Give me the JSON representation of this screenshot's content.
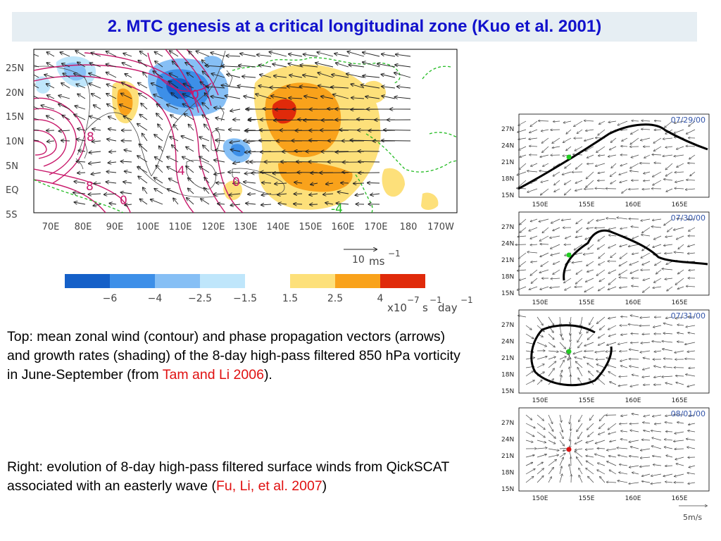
{
  "title": "2. MTC genesis at a critical longitudinal zone (Kuo et al. 2001)",
  "main_map": {
    "lat_labels": [
      "25N",
      "20N",
      "15N",
      "10N",
      "5N",
      "EQ",
      "5S"
    ],
    "lon_labels": [
      "70E",
      "80E",
      "90E",
      "100E",
      "110E",
      "120E",
      "130E",
      "140E",
      "150E",
      "160E",
      "170E",
      "180",
      "170W"
    ],
    "contour_labels": [
      "8",
      "8",
      "4",
      "0",
      "0",
      "0",
      "-4"
    ],
    "vector_scale_label": "10",
    "vector_scale_unit": "ms",
    "vector_scale_exp": "−1",
    "colorbar": {
      "negative_labels": [
        "−6",
        "−4",
        "−2.5",
        "−1.5"
      ],
      "positive_labels": [
        "1.5",
        "2.5",
        "4"
      ],
      "negative_colors": [
        "#1560c8",
        "#3d8fe8",
        "#86bff5",
        "#bfe6fb"
      ],
      "positive_colors": [
        "#fde07a",
        "#f9a21b",
        "#e02a0a"
      ],
      "unit_base": "x10",
      "unit_exp1": "−7",
      "unit_s": "s",
      "unit_exp2": "−1",
      "unit_day": "day",
      "unit_exp3": "−1"
    },
    "colors": {
      "contour": "#c8186a",
      "zero_contour": "#22bb22",
      "vector": "#222222"
    }
  },
  "panels": [
    {
      "date": "07/29/00",
      "dot_color": "#22cc22"
    },
    {
      "date": "07/30/00",
      "dot_color": "#22cc22"
    },
    {
      "date": "07/31/00",
      "dot_color": "#22cc22"
    },
    {
      "date": "08/01/00",
      "dot_color": "#dd1111"
    }
  ],
  "panel_axes": {
    "lat_labels": [
      "27N",
      "24N",
      "21N",
      "18N",
      "15N"
    ],
    "lon_labels": [
      "150E",
      "155E",
      "160E",
      "165E"
    ]
  },
  "panel_scale_label": "5m/s",
  "text_top": {
    "body": "Top: mean zonal wind (contour) and phase propagation vectors (arrows) and growth rates (shading) of the 8-day high-pass filtered 850 hPa vorticity in June-September (from ",
    "ref": "Tam and Li 2006",
    "tail": ")."
  },
  "text_bottom": {
    "body": "Right: evolution of 8-day high-pass filtered surface winds from QickSCAT associated with an easterly wave (",
    "ref": "Fu, Li, et al. 2007",
    "tail": ")"
  }
}
